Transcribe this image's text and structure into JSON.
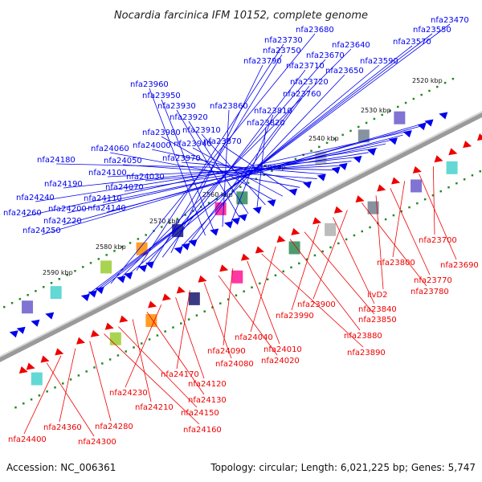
{
  "title": "Nocardia farcinica IFM 10152, complete genome",
  "accession": "Accession: NC_006361",
  "topology": "Topology: circular; Length: 6,021,225 bp; Genes: 5,747",
  "colors": {
    "forward_gene": "#0000ee",
    "reverse_gene": "#ee0000",
    "backbone": "#777777",
    "tick": "#228b22",
    "cog_palette": [
      "#6a5acd",
      "#48d1cc",
      "#9acd32",
      "#ff8c00",
      "#191970",
      "#ff1493",
      "#2e8b57",
      "#b0b0b0",
      "#708090"
    ]
  },
  "kbp_marks": [
    {
      "label": "2520 kbp"
    },
    {
      "label": "2530 kbp"
    },
    {
      "label": "2540 kbp"
    },
    {
      "label": "2550 kbp"
    },
    {
      "label": "2560 kbp"
    },
    {
      "label": "2570 kbp"
    },
    {
      "label": "2580 kbp"
    },
    {
      "label": "2590 kbp"
    }
  ],
  "forward_genes": [
    "nfa23470",
    "nfa23550",
    "nfa23570",
    "nfa23680",
    "nfa23640",
    "nfa23590",
    "nfa23730",
    "nfa23670",
    "nfa23750",
    "nfa23710",
    "nfa23790",
    "nfa23650",
    "nfa23720",
    "nfa23760",
    "nfa23960",
    "nfa23950",
    "nfa23860",
    "nfa23810",
    "nfa23930",
    "nfa23920",
    "nfa23820",
    "nfa23910",
    "nfa23980",
    "nfa23940",
    "nfa23870",
    "nfa24060",
    "nfa24000",
    "nfa24050",
    "nfa23970",
    "nfa24180",
    "nfa24100",
    "nfa24030",
    "nfa24190",
    "nfa24070",
    "nfa24240",
    "nfa24110",
    "nfa24200",
    "nfa24140",
    "nfa24260",
    "nfa24220",
    "nfa24250"
  ],
  "reverse_genes": [
    "nfa23700",
    "nfa23690",
    "nfa23800",
    "nfa23770",
    "ilvD2",
    "nfa23780",
    "nfa23900",
    "nfa23840",
    "nfa23990",
    "nfa23850",
    "nfa23880",
    "nfa24040",
    "nfa23890",
    "nfa24010",
    "nfa24090",
    "nfa24020",
    "nfa24080",
    "nfa24170",
    "nfa24120",
    "nfa24230",
    "nfa24130",
    "nfa24210",
    "nfa24150",
    "nfa24160",
    "nfa24280",
    "nfa24360",
    "nfa24400",
    "nfa24300"
  ]
}
